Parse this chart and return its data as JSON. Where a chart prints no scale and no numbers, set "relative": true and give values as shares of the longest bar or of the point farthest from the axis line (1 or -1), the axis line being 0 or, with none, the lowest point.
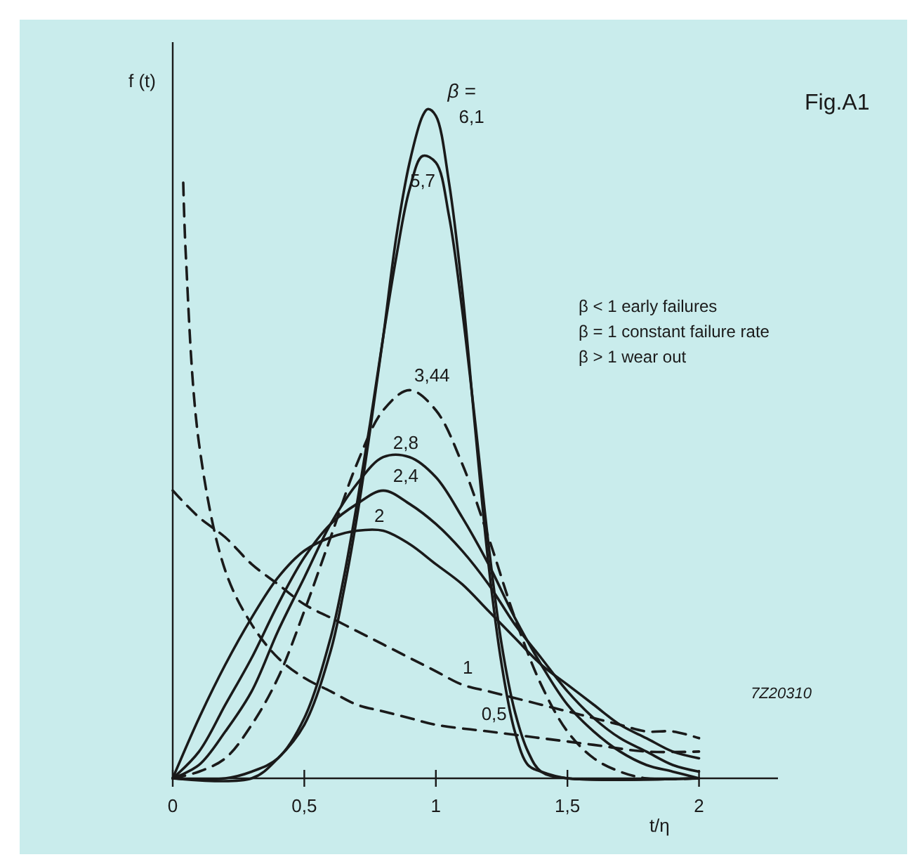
{
  "chart_data": {
    "type": "line",
    "relative": true,
    "xlabel": "t/η",
    "ylabel": "f (t)",
    "xlim": [
      0,
      2.3
    ],
    "xticks": [
      0,
      {
        "value": 0.5,
        "label": "0,5"
      },
      1,
      {
        "value": 1.5,
        "label": "1,5"
      },
      2
    ],
    "grid": false,
    "legend": false,
    "marker": "none",
    "annotations": [
      "β =",
      "Fig.A1",
      "β < 1 early failures",
      "β = 1 constant failure rate",
      "β > 1 wear out",
      "7Z20310"
    ],
    "series": [
      {
        "name": "0,5",
        "color": "#1a1a1a",
        "line_style": "dashed",
        "x": [
          0.04,
          0.05,
          0.1,
          0.2,
          0.3,
          0.4,
          0.5,
          0.6,
          0.7,
          0.8,
          0.9,
          1.0,
          1.2,
          1.4,
          1.6,
          1.8,
          2.0
        ],
        "values": [
          0.89,
          0.78,
          0.5,
          0.31,
          0.23,
          0.18,
          0.15,
          0.13,
          0.11,
          0.1,
          0.09,
          0.08,
          0.07,
          0.06,
          0.05,
          0.04,
          0.04
        ]
      },
      {
        "name": "1",
        "color": "#1a1a1a",
        "line_style": "dashed",
        "x": [
          0,
          0.1,
          0.2,
          0.3,
          0.4,
          0.5,
          0.6,
          0.7,
          0.8,
          0.9,
          1.0,
          1.1,
          1.2,
          1.3,
          1.4,
          1.5,
          1.6,
          1.7,
          1.8,
          1.9,
          2.0
        ],
        "values": [
          0.43,
          0.39,
          0.36,
          0.32,
          0.29,
          0.26,
          0.24,
          0.22,
          0.2,
          0.18,
          0.16,
          0.14,
          0.13,
          0.12,
          0.11,
          0.1,
          0.09,
          0.08,
          0.07,
          0.07,
          0.06
        ]
      },
      {
        "name": "2",
        "color": "#1a1a1a",
        "line_style": "solid",
        "x": [
          0,
          0.1,
          0.2,
          0.3,
          0.4,
          0.5,
          0.6,
          0.7,
          0.8,
          0.9,
          1.0,
          1.1,
          1.2,
          1.3,
          1.4,
          1.5,
          1.6,
          1.7,
          1.8,
          1.9,
          2.0
        ],
        "values": [
          0,
          0.09,
          0.17,
          0.24,
          0.3,
          0.34,
          0.36,
          0.37,
          0.37,
          0.35,
          0.32,
          0.29,
          0.25,
          0.21,
          0.17,
          0.14,
          0.11,
          0.08,
          0.06,
          0.04,
          0.03
        ]
      },
      {
        "name": "2,4",
        "color": "#1a1a1a",
        "line_style": "solid",
        "x": [
          0,
          0.1,
          0.2,
          0.3,
          0.4,
          0.5,
          0.6,
          0.7,
          0.8,
          0.9,
          1.0,
          1.1,
          1.2,
          1.3,
          1.4,
          1.5,
          1.6,
          1.7,
          1.8,
          1.9,
          2.0
        ],
        "values": [
          0,
          0.04,
          0.11,
          0.18,
          0.26,
          0.33,
          0.38,
          0.41,
          0.43,
          0.41,
          0.38,
          0.34,
          0.29,
          0.23,
          0.18,
          0.13,
          0.09,
          0.06,
          0.04,
          0.02,
          0.01
        ]
      },
      {
        "name": "2,8",
        "color": "#1a1a1a",
        "line_style": "solid",
        "x": [
          0,
          0.1,
          0.2,
          0.3,
          0.4,
          0.5,
          0.6,
          0.7,
          0.8,
          0.9,
          1.0,
          1.1,
          1.2,
          1.3,
          1.4,
          1.5,
          1.6,
          1.7,
          1.8,
          1.9,
          2.0
        ],
        "values": [
          0,
          0.02,
          0.07,
          0.13,
          0.22,
          0.3,
          0.38,
          0.44,
          0.48,
          0.48,
          0.45,
          0.39,
          0.32,
          0.24,
          0.17,
          0.11,
          0.07,
          0.04,
          0.02,
          0.01,
          0
        ]
      },
      {
        "name": "3,44",
        "color": "#1a1a1a",
        "line_style": "dashed",
        "x": [
          0,
          0.1,
          0.2,
          0.3,
          0.4,
          0.5,
          0.6,
          0.7,
          0.8,
          0.9,
          1.0,
          1.1,
          1.2,
          1.3,
          1.4,
          1.5,
          1.6,
          1.7,
          1.8,
          2.0
        ],
        "values": [
          0,
          0.01,
          0.03,
          0.08,
          0.15,
          0.25,
          0.36,
          0.47,
          0.55,
          0.58,
          0.55,
          0.47,
          0.36,
          0.24,
          0.14,
          0.07,
          0.03,
          0.01,
          0,
          0
        ]
      },
      {
        "name": "5,7",
        "color": "#1a1a1a",
        "line_style": "solid",
        "x": [
          0,
          0.2,
          0.3,
          0.4,
          0.5,
          0.6,
          0.65,
          0.7,
          0.75,
          0.8,
          0.85,
          0.9,
          0.95,
          1.0,
          1.05,
          1.1,
          1.15,
          1.2,
          1.25,
          1.3,
          1.35,
          1.4,
          1.5,
          2.0
        ],
        "values": [
          0,
          0,
          0.01,
          0.03,
          0.09,
          0.21,
          0.3,
          0.41,
          0.53,
          0.66,
          0.78,
          0.88,
          0.93,
          0.92,
          0.84,
          0.7,
          0.53,
          0.35,
          0.2,
          0.1,
          0.04,
          0.01,
          0,
          0
        ]
      },
      {
        "name": "6,1",
        "color": "#1a1a1a",
        "line_style": "solid",
        "x": [
          0,
          0.3,
          0.4,
          0.5,
          0.6,
          0.65,
          0.7,
          0.75,
          0.8,
          0.85,
          0.9,
          0.95,
          0.97,
          1.0,
          1.05,
          1.1,
          1.15,
          1.2,
          1.25,
          1.3,
          1.35,
          1.4,
          1.5,
          2.0
        ],
        "values": [
          0,
          0,
          0.03,
          0.08,
          0.19,
          0.28,
          0.39,
          0.52,
          0.66,
          0.81,
          0.92,
          0.99,
          1.0,
          0.99,
          0.89,
          0.73,
          0.52,
          0.32,
          0.17,
          0.07,
          0.02,
          0.01,
          0,
          0
        ]
      }
    ]
  }
}
